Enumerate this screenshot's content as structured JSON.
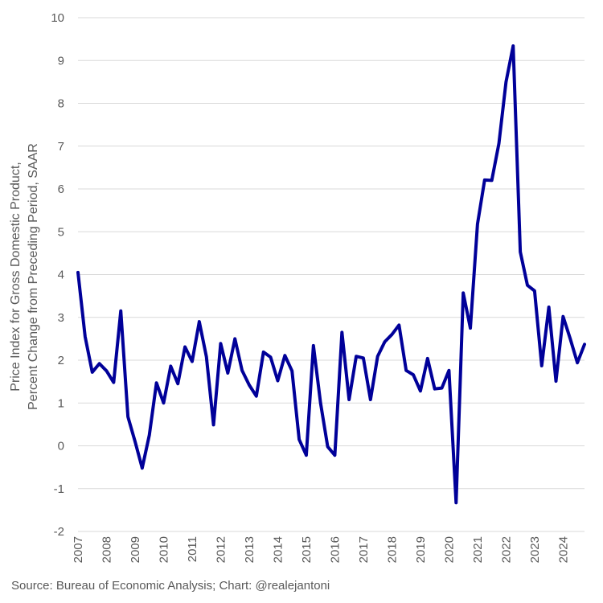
{
  "chart_data": {
    "type": "line",
    "ylabel_line1": "Price Index for Gross Domestic Product,",
    "ylabel_line2": "Percent Change from Preceding Period, SAAR",
    "xlabel": "",
    "ylim": [
      -2,
      10
    ],
    "yticks": [
      -2,
      -1,
      0,
      1,
      2,
      3,
      4,
      5,
      6,
      7,
      8,
      9,
      10
    ],
    "xlim": [
      2007.0,
      2024.75
    ],
    "xticks": [
      "2007",
      "2008",
      "2009",
      "2010",
      "2011",
      "2012",
      "2013",
      "2014",
      "2015",
      "2016",
      "2017",
      "2018",
      "2019",
      "2020",
      "2021",
      "2022",
      "2023",
      "2024"
    ],
    "grid": true,
    "legend": "none",
    "series": [
      {
        "color": "#000099",
        "frequency": "quarterly",
        "start": "2007 Q1",
        "values": [
          4.05,
          2.55,
          1.72,
          1.92,
          1.75,
          1.48,
          3.15,
          0.68,
          0.1,
          -0.52,
          0.25,
          1.47,
          1.0,
          1.86,
          1.45,
          2.31,
          1.97,
          2.9,
          2.08,
          0.49,
          2.39,
          1.7,
          2.5,
          1.76,
          1.42,
          1.16,
          2.19,
          2.07,
          1.52,
          2.11,
          1.75,
          0.15,
          -0.22,
          2.34,
          1.0,
          -0.02,
          -0.22,
          2.65,
          1.08,
          2.09,
          2.05,
          1.08,
          2.09,
          2.43,
          2.6,
          2.82,
          1.76,
          1.66,
          1.28,
          2.04,
          1.33,
          1.35,
          1.76,
          -1.33,
          3.57,
          2.75,
          5.18,
          6.21,
          6.2,
          7.06,
          8.5,
          9.34,
          4.53,
          3.75,
          3.62,
          1.87,
          3.24,
          1.51,
          3.02,
          2.5,
          1.94,
          2.37
        ]
      }
    ]
  },
  "footer": {
    "source": "Source: Bureau of Economic Analysis; Chart: @realejantoni"
  }
}
